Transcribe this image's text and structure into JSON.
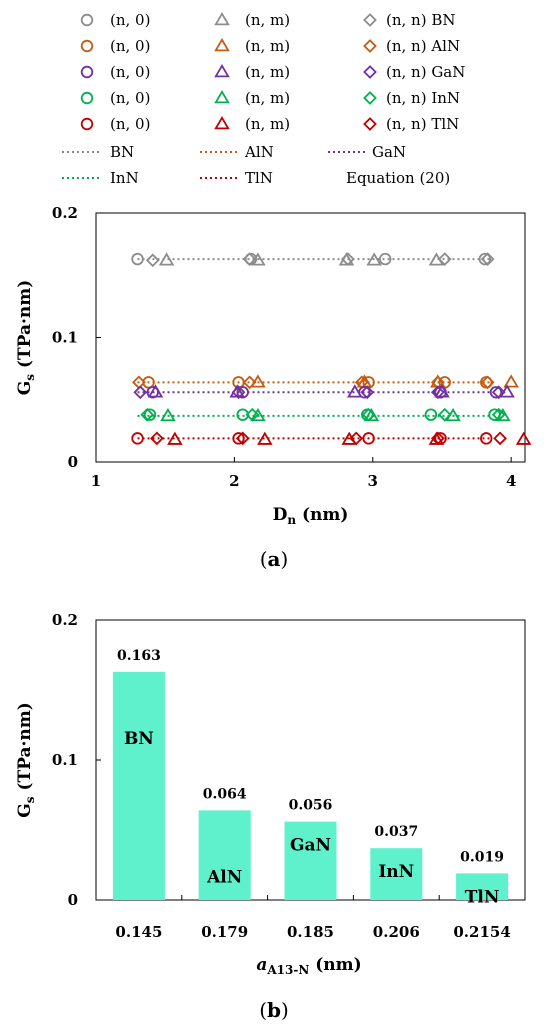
{
  "legend": {
    "markers": [
      [
        "(n, 0)",
        "(n, m)",
        "(n, n) BN"
      ],
      [
        "(n, 0)",
        "(n, m)",
        "(n, n) AlN"
      ],
      [
        "(n, 0)",
        "(n, m)",
        "(n, n) GaN"
      ],
      [
        "(n, 0)",
        "(n, m)",
        "(n, n) InN"
      ],
      [
        "(n, 0)",
        "(n, m)",
        "(n, n) TlN"
      ]
    ],
    "lines": [
      [
        "BN",
        "AlN",
        "GaN"
      ],
      [
        "InN",
        "TlN",
        "Equation (20)"
      ]
    ]
  },
  "captions": {
    "a_open": "(",
    "a_letter": "a",
    "a_close": ")",
    "b_open": "(",
    "b_letter": "b",
    "b_close": ")"
  },
  "chart_data": [
    {
      "type": "scatter",
      "panel": "a",
      "title": "",
      "xlabel": "D",
      "xlabel_sub": "n",
      "xlabel_unit": " (nm)",
      "ylabel": "G",
      "ylabel_sub": "s",
      "ylabel_unit": " (TPa·nm)",
      "xlim": [
        1,
        4.1
      ],
      "ylim": [
        0,
        0.2
      ],
      "xticks": [
        "1",
        "2",
        "3",
        "4"
      ],
      "yticks": [
        "0",
        "0.1",
        "0.2"
      ],
      "grid": false,
      "legend_position": "top",
      "series": [
        {
          "material": "BN",
          "color": "#8c8c8c",
          "line_y": 0.163,
          "zigzag": {
            "x": [
              1.3,
              2.12,
              3.09,
              3.81
            ],
            "y": [
              0.163,
              0.163,
              0.163,
              0.163
            ]
          },
          "chiral": {
            "x": [
              1.51,
              2.17,
              2.81,
              3.01,
              3.46
            ],
            "y": [
              0.162,
              0.162,
              0.162,
              0.162,
              0.162
            ]
          },
          "armchair": {
            "x": [
              1.41,
              2.11,
              2.82,
              3.52,
              3.83
            ],
            "y": [
              0.162,
              0.163,
              0.163,
              0.163,
              0.163
            ]
          }
        },
        {
          "material": "AlN",
          "color": "#c55a11",
          "line_y": 0.064,
          "zigzag": {
            "x": [
              1.38,
              2.03,
              2.97,
              3.52,
              3.82
            ],
            "y": [
              0.064,
              0.064,
              0.064,
              0.064,
              0.064
            ]
          },
          "chiral": {
            "x": [
              2.17,
              2.94,
              3.47,
              4.0
            ],
            "y": [
              0.064,
              0.064,
              0.064,
              0.064
            ]
          },
          "armchair": {
            "x": [
              1.31,
              2.11,
              2.92,
              3.47,
              3.83
            ],
            "y": [
              0.064,
              0.064,
              0.064,
              0.064,
              0.064
            ]
          }
        },
        {
          "material": "GaN",
          "color": "#7030a0",
          "line_y": 0.056,
          "zigzag": {
            "x": [
              1.41,
              2.06,
              2.94,
              3.49,
              3.89
            ],
            "y": [
              0.056,
              0.056,
              0.056,
              0.056,
              0.056
            ]
          },
          "chiral": {
            "x": [
              1.43,
              2.02,
              2.87,
              3.5,
              3.97
            ],
            "y": [
              0.056,
              0.056,
              0.056,
              0.056,
              0.056
            ]
          },
          "armchair": {
            "x": [
              1.32,
              2.03,
              2.96,
              3.47,
              3.91
            ],
            "y": [
              0.056,
              0.056,
              0.056,
              0.056,
              0.056
            ]
          }
        },
        {
          "material": "InN",
          "color": "#00b050",
          "line_y": 0.037,
          "zigzag": {
            "x": [
              1.39,
              2.06,
              2.96,
              3.42,
              3.88
            ],
            "y": [
              0.038,
              0.038,
              0.038,
              0.038,
              0.038
            ]
          },
          "chiral": {
            "x": [
              1.52,
              2.17,
              2.99,
              3.58,
              3.94
            ],
            "y": [
              0.037,
              0.037,
              0.037,
              0.037,
              0.037
            ]
          },
          "armchair": {
            "x": [
              1.37,
              2.13,
              2.97,
              3.52,
              3.91
            ],
            "y": [
              0.038,
              0.038,
              0.038,
              0.038,
              0.038
            ]
          }
        },
        {
          "material": "TlN",
          "color": "#c00000",
          "line_y": 0.019,
          "zigzag": {
            "x": [
              1.3,
              2.03,
              2.97,
              3.49,
              3.82
            ],
            "y": [
              0.019,
              0.019,
              0.019,
              0.019,
              0.019
            ]
          },
          "chiral": {
            "x": [
              1.57,
              2.22,
              2.83,
              3.46,
              4.09
            ],
            "y": [
              0.018,
              0.018,
              0.018,
              0.018,
              0.018
            ]
          },
          "armchair": {
            "x": [
              1.44,
              2.06,
              2.88,
              3.47,
              3.92
            ],
            "y": [
              0.019,
              0.019,
              0.019,
              0.019,
              0.019
            ]
          }
        }
      ]
    },
    {
      "type": "bar",
      "panel": "b",
      "title": "",
      "xlabel": "a",
      "xlabel_sub": "A13-N",
      "xlabel_unit": " (nm)",
      "ylabel": "G",
      "ylabel_sub": "s",
      "ylabel_unit": " (TPa·nm)",
      "ylim": [
        0,
        0.2
      ],
      "yticks": [
        "0",
        "0.1",
        "0.2"
      ],
      "categories": [
        "0.145",
        "0.179",
        "0.185",
        "0.206",
        "0.2154"
      ],
      "values": [
        0.163,
        0.064,
        0.056,
        0.037,
        0.019
      ],
      "value_labels": [
        "0.163",
        "0.064",
        "0.056",
        "0.037",
        "0.019"
      ],
      "bar_labels": [
        "BN",
        "AlN",
        "GaN",
        "InN",
        "TlN"
      ],
      "color": "#5ef1cb"
    }
  ]
}
